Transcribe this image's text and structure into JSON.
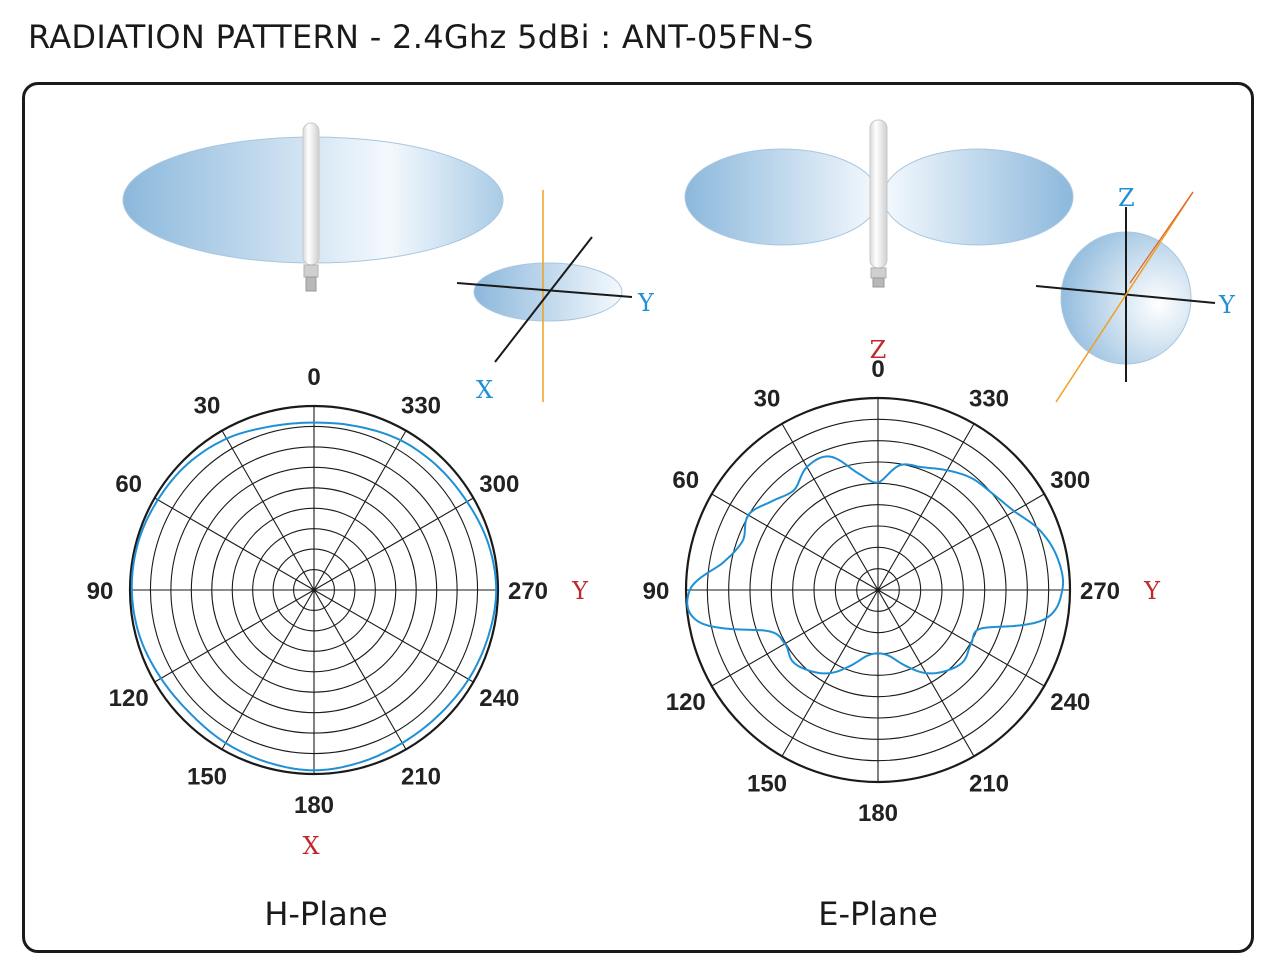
{
  "title": "RADIATION PATTERN - 2.4Ghz 5dBi : ANT-05FN-S",
  "colors": {
    "trace": "#1e90d6",
    "axis_blue": "#1e90d6",
    "axis_red": "#c0282d",
    "axis_orange": "#f0a020",
    "lobe_dark": "#8cb8dc",
    "lobe_light": "#f4f9fd",
    "grid": "#1a1a1a"
  },
  "illustrations": {
    "h_plane_axes": {
      "y_label": "Y",
      "x_label": "X"
    },
    "e_plane_axes": {
      "z_label": "Z",
      "y_label": "Y"
    }
  },
  "chart_data": [
    {
      "type": "polar",
      "title": "H-Plane",
      "angle_ticks": [
        "0",
        "30",
        "60",
        "90",
        "120",
        "150",
        "180",
        "210",
        "240",
        "270",
        "300",
        "330"
      ],
      "angle_direction": "counterclockwise",
      "zero_location": "top",
      "rings": 9,
      "top_axis_label": "",
      "right_axis_label": "Y",
      "bottom_axis_label": "X",
      "r_max": 1.0,
      "series": [
        {
          "angles": [
            0,
            15,
            30,
            45,
            60,
            75,
            90,
            105,
            120,
            135,
            150,
            165,
            180,
            195,
            210,
            225,
            240,
            255,
            270,
            285,
            300,
            315,
            330,
            345,
            360
          ],
          "values": [
            0.91,
            0.92,
            0.95,
            0.97,
            0.98,
            0.99,
            0.99,
            0.98,
            0.96,
            0.95,
            0.96,
            0.97,
            0.98,
            0.97,
            0.96,
            0.96,
            0.97,
            0.98,
            0.99,
            0.98,
            0.96,
            0.95,
            0.94,
            0.92,
            0.91
          ]
        }
      ]
    },
    {
      "type": "polar",
      "title": "E-Plane",
      "angle_ticks": [
        "0",
        "30",
        "60",
        "90",
        "120",
        "150",
        "180",
        "210",
        "240",
        "270",
        "300",
        "330"
      ],
      "angle_direction": "counterclockwise",
      "zero_location": "top",
      "rings": 9,
      "top_axis_label": "Z",
      "right_axis_label": "Y",
      "bottom_axis_label": "",
      "r_max": 1.0,
      "series": [
        {
          "angles": [
            0,
            10,
            20,
            30,
            40,
            50,
            60,
            70,
            80,
            90,
            100,
            110,
            120,
            130,
            140,
            150,
            160,
            170,
            180,
            190,
            200,
            210,
            220,
            230,
            240,
            250,
            260,
            270,
            280,
            290,
            300,
            310,
            320,
            330,
            340,
            350,
            360
          ],
          "values": [
            0.56,
            0.62,
            0.74,
            0.74,
            0.68,
            0.72,
            0.78,
            0.75,
            0.82,
            0.98,
            0.95,
            0.62,
            0.56,
            0.58,
            0.55,
            0.5,
            0.42,
            0.35,
            0.33,
            0.35,
            0.42,
            0.5,
            0.55,
            0.58,
            0.56,
            0.58,
            0.88,
            0.96,
            0.95,
            0.9,
            0.82,
            0.78,
            0.76,
            0.72,
            0.68,
            0.66,
            0.56
          ]
        }
      ]
    }
  ],
  "plane_labels": [
    "H-Plane",
    "E-Plane"
  ]
}
